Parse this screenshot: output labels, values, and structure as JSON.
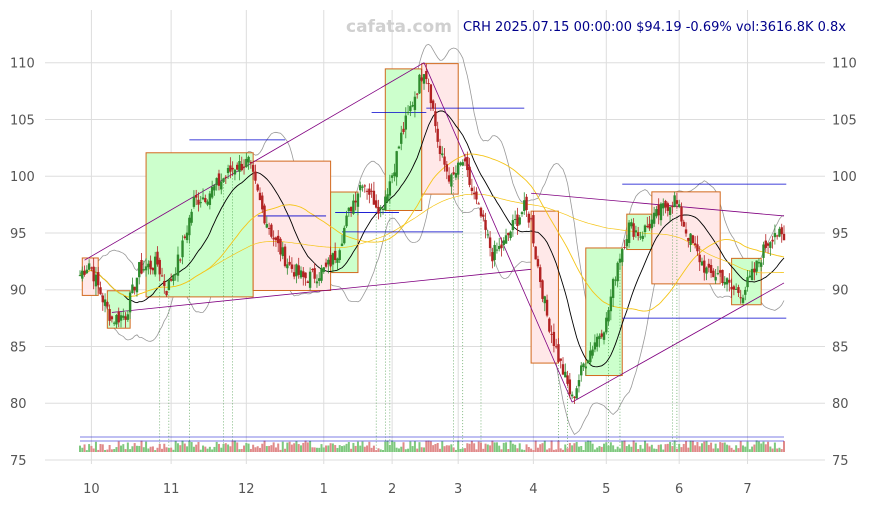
{
  "watermark": "cafata.com",
  "header": "CRH 2025.07.15 00:00:00 $94.19 -0.69% vol:3616.8K 0.8x",
  "colors": {
    "up": "#2e8b2e",
    "down": "#b22222",
    "up_box_fill": "#ccffcc",
    "down_box_fill": "#ffe8e8",
    "box_stroke": "#d2691e",
    "ma_short": "#000000",
    "ma_mid": "#f5c518",
    "ma_long": "#f5c518",
    "band": "#999999",
    "trend": "#800080",
    "level": "#0000cd",
    "vline": "#2e8b2e",
    "grid": "#dddddd"
  },
  "chart_data": {
    "type": "candlestick",
    "ticker": "CRH",
    "ylim": [
      75,
      112
    ],
    "y_ticks": [
      75,
      80,
      85,
      90,
      95,
      100,
      105,
      110
    ],
    "x_tick_labels": [
      "10",
      "11",
      "12",
      "1",
      "2",
      "3",
      "4",
      "5",
      "6",
      "7"
    ],
    "x_tick_index": [
      5,
      40,
      73,
      107,
      137,
      166,
      199,
      231,
      263,
      293
    ],
    "n_bars": 310,
    "anchors": [
      [
        0,
        91.3
      ],
      [
        4,
        92.4
      ],
      [
        10,
        89.2
      ],
      [
        14,
        87.4
      ],
      [
        20,
        87.8
      ],
      [
        26,
        91.8
      ],
      [
        34,
        92.3
      ],
      [
        38,
        90.0
      ],
      [
        44,
        93.0
      ],
      [
        50,
        97.8
      ],
      [
        56,
        98.4
      ],
      [
        62,
        99.6
      ],
      [
        68,
        100.9
      ],
      [
        74,
        101.2
      ],
      [
        80,
        97.0
      ],
      [
        86,
        94.1
      ],
      [
        92,
        92.1
      ],
      [
        98,
        91.0
      ],
      [
        103,
        91.3
      ],
      [
        108,
        91.8
      ],
      [
        113,
        93.4
      ],
      [
        119,
        97.4
      ],
      [
        124,
        99.7
      ],
      [
        128,
        98.3
      ],
      [
        132,
        97.1
      ],
      [
        137,
        100.2
      ],
      [
        141,
        103.5
      ],
      [
        146,
        106.6
      ],
      [
        151,
        109.6
      ],
      [
        153,
        108.4
      ],
      [
        158,
        101.9
      ],
      [
        163,
        99.6
      ],
      [
        168,
        101.3
      ],
      [
        172,
        98.7
      ],
      [
        176,
        96.4
      ],
      [
        181,
        93.1
      ],
      [
        186,
        94.0
      ],
      [
        190,
        95.6
      ],
      [
        195,
        97.2
      ],
      [
        198,
        96.0
      ],
      [
        200,
        93.1
      ],
      [
        205,
        87.7
      ],
      [
        210,
        84.0
      ],
      [
        213,
        82.2
      ],
      [
        216,
        80.3
      ],
      [
        221,
        83.4
      ],
      [
        226,
        85.5
      ],
      [
        231,
        87.2
      ],
      [
        236,
        92.5
      ],
      [
        241,
        95.6
      ],
      [
        246,
        94.9
      ],
      [
        251,
        96.0
      ],
      [
        256,
        97.2
      ],
      [
        261,
        98.0
      ],
      [
        266,
        95.2
      ],
      [
        271,
        93.1
      ],
      [
        276,
        91.3
      ],
      [
        281,
        91.4
      ],
      [
        286,
        90.0
      ],
      [
        291,
        89.8
      ],
      [
        296,
        91.6
      ],
      [
        301,
        93.9
      ],
      [
        305,
        95.2
      ],
      [
        309,
        94.2
      ]
    ],
    "volume_scale": {
      "max_k": 8000
    }
  }
}
